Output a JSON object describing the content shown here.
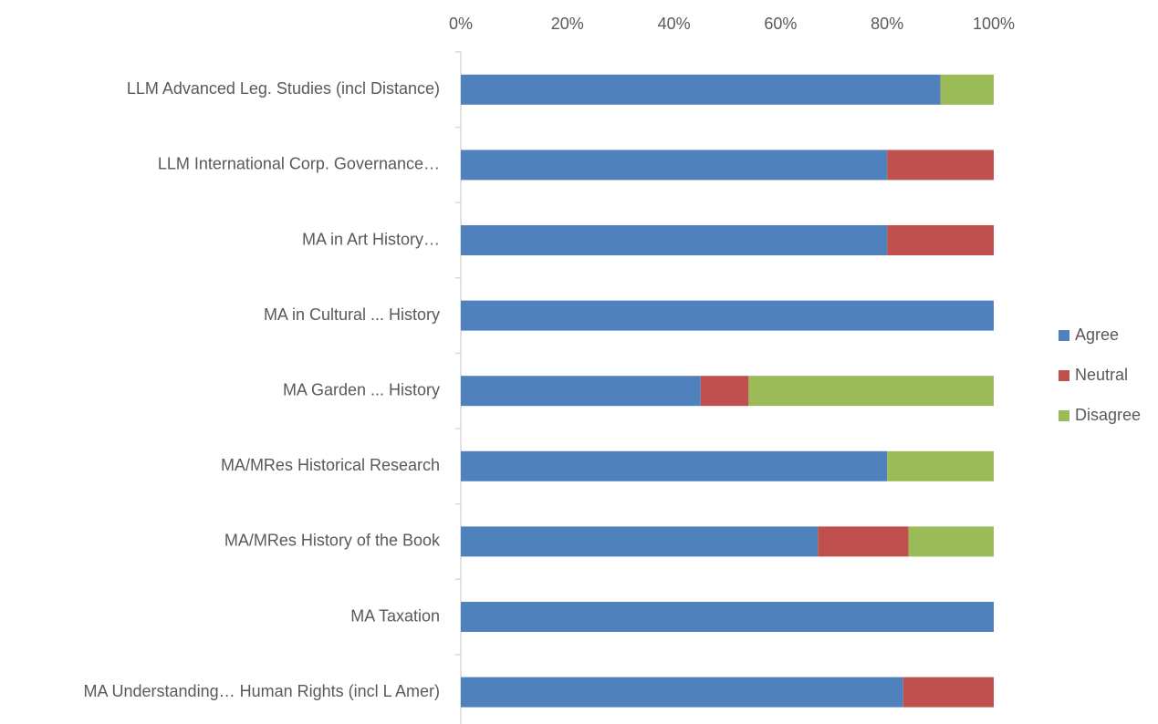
{
  "chart_data": {
    "type": "stacked_barh",
    "categories": [
      "LLM  Advanced Leg. Studies (incl Distance)",
      "LLM International Corp. Governance…",
      "MA in Art History…",
      "MA in Cultural ... History",
      "MA Garden ... History",
      "MA/MRes Historical Research",
      "MA/MRes History of the Book",
      "MA Taxation",
      "MA Understanding… Human Rights (incl L Amer)"
    ],
    "series": [
      {
        "name": "Agree",
        "color": "#4f81bd",
        "values": [
          90,
          80,
          80,
          100,
          45,
          80,
          67,
          100,
          83
        ]
      },
      {
        "name": "Neutral",
        "color": "#c0504d",
        "values": [
          0,
          20,
          20,
          0,
          9,
          0,
          17,
          0,
          17
        ]
      },
      {
        "name": "Disagree",
        "color": "#9bbb59",
        "values": [
          10,
          0,
          0,
          0,
          46,
          20,
          16,
          0,
          0
        ]
      }
    ],
    "xlim": [
      0,
      100
    ],
    "xticks": [
      {
        "value": 0,
        "label": "0%"
      },
      {
        "value": 20,
        "label": "20%"
      },
      {
        "value": 40,
        "label": "40%"
      },
      {
        "value": 60,
        "label": "60%"
      },
      {
        "value": 80,
        "label": "80%"
      },
      {
        "value": 100,
        "label": "100%"
      }
    ],
    "grid": false,
    "legend": "right"
  }
}
